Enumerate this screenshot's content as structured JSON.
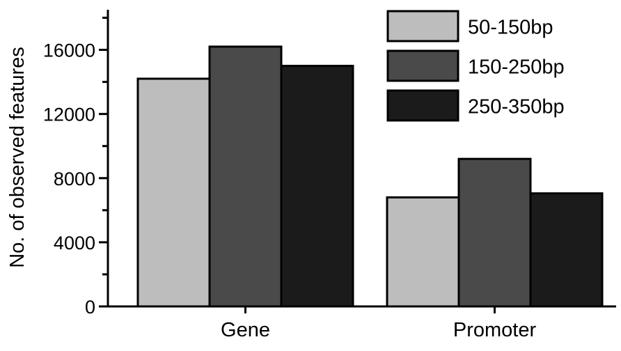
{
  "chart_data": {
    "type": "bar",
    "title": "",
    "xlabel": "",
    "ylabel": "No. of observed features",
    "categories": [
      "Gene",
      "Promoter"
    ],
    "series": [
      {
        "name": "50-150bp",
        "color": "#bdbdbd",
        "values": [
          14200,
          6800
        ]
      },
      {
        "name": "150-250bp",
        "color": "#4a4a4a",
        "values": [
          16200,
          9200
        ]
      },
      {
        "name": "250-350bp",
        "color": "#1b1b1b",
        "values": [
          15000,
          7050
        ]
      }
    ],
    "ylim": [
      0,
      18500
    ],
    "yticks": [
      0,
      4000,
      8000,
      12000,
      16000
    ],
    "ytick_labels": [
      "0",
      "4000",
      "8000",
      "12000",
      "16000"
    ],
    "grid": false,
    "legend_position": "top-right",
    "bar_outline_color": "#000000"
  }
}
